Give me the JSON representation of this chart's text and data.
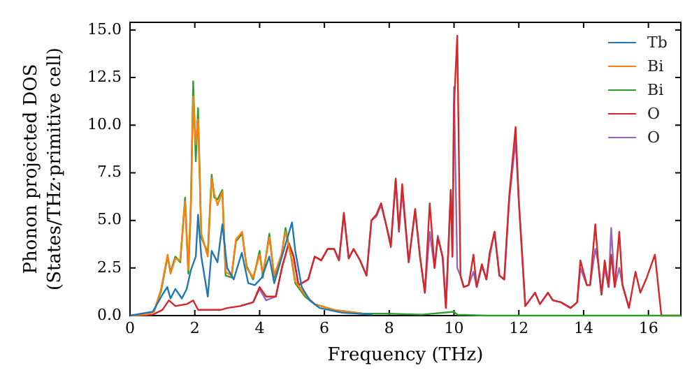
{
  "chart_data": {
    "type": "line",
    "xlabel": "Frequency (THz)",
    "ylabel": "Phonon projected DOS\n(States/THz·primitive cell)",
    "xlim": [
      0,
      17
    ],
    "ylim": [
      0,
      15.4
    ],
    "xticks": [
      0,
      2,
      4,
      6,
      8,
      10,
      12,
      14,
      16
    ],
    "yticks": [
      {
        "value": 0,
        "label": "0.0"
      },
      {
        "value": 2.5,
        "label": "2.5"
      },
      {
        "value": 5,
        "label": "5.0"
      },
      {
        "value": 7.5,
        "label": "7.5"
      },
      {
        "value": 10,
        "label": "10.0"
      },
      {
        "value": 12.5,
        "label": "12.5"
      },
      {
        "value": 15,
        "label": "15.0"
      }
    ],
    "grid": false,
    "legend": "top right",
    "marker": "none",
    "line_style": "solid",
    "series": [
      {
        "name": "Tb",
        "color": "#1f77b4",
        "x": [
          0,
          0.7,
          1.0,
          1.15,
          1.25,
          1.4,
          1.6,
          1.75,
          1.88,
          2.03,
          2.1,
          2.2,
          2.4,
          2.52,
          2.7,
          2.85,
          3.0,
          3.2,
          3.45,
          3.65,
          3.85,
          4.07,
          4.3,
          4.45,
          4.74,
          5.0,
          5.1,
          5.3,
          5.55,
          5.85,
          6.55,
          7.5
        ],
        "values": [
          0,
          0.2,
          1.1,
          1.5,
          0.9,
          1.4,
          0.9,
          1.4,
          2.4,
          3.1,
          5.3,
          3.1,
          1.0,
          3.4,
          2.8,
          4.8,
          2.5,
          1.9,
          3.3,
          1.7,
          1.6,
          2.0,
          3.1,
          1.7,
          3.4,
          4.9,
          3.4,
          1.5,
          0.8,
          0.4,
          0.15,
          0.05
        ]
      },
      {
        "name": "Bi",
        "color": "#ff7f0e",
        "x": [
          0,
          0.5,
          0.74,
          0.96,
          1.16,
          1.25,
          1.4,
          1.55,
          1.7,
          1.8,
          1.88,
          1.95,
          2.03,
          2.1,
          2.2,
          2.4,
          2.52,
          2.6,
          2.7,
          2.85,
          2.95,
          3.13,
          3.27,
          3.46,
          3.6,
          3.8,
          4.0,
          4.1,
          4.3,
          4.45,
          4.67,
          4.8,
          5.0,
          5.1,
          5.4,
          5.7,
          6.3,
          7.2
        ],
        "values": [
          0,
          0.05,
          0.2,
          1.4,
          3.2,
          2.2,
          3.0,
          2.9,
          6.0,
          2.4,
          5.8,
          11.5,
          9.0,
          10.3,
          4.3,
          3.1,
          7.2,
          6.4,
          5.8,
          6.5,
          2.3,
          2.1,
          4.0,
          4.4,
          2.5,
          2.0,
          3.2,
          2.2,
          4.1,
          2.1,
          3.2,
          4.4,
          2.9,
          1.8,
          1.1,
          0.6,
          0.3,
          0.1
        ]
      },
      {
        "name": "Bi",
        "color": "#2ca02c",
        "x": [
          0.74,
          0.96,
          1.16,
          1.25,
          1.4,
          1.55,
          1.7,
          1.8,
          1.88,
          1.95,
          2.03,
          2.1,
          2.2,
          2.4,
          2.52,
          2.6,
          2.7,
          2.85,
          2.95,
          3.13,
          3.27,
          3.46,
          3.6,
          3.8,
          4.0,
          4.1,
          4.3,
          4.45,
          4.67,
          4.8,
          5.0,
          5.1,
          5.4,
          5.7,
          6.3,
          7.2,
          8.0,
          9.0,
          10.0,
          10.1,
          11,
          12,
          13,
          14,
          15,
          16,
          17
        ],
        "values": [
          0.2,
          1.3,
          3.1,
          2.3,
          3.1,
          2.8,
          6.2,
          2.2,
          6.0,
          12.3,
          8.1,
          10.9,
          4.1,
          3.3,
          7.4,
          6.2,
          6.1,
          6.6,
          2.1,
          2.0,
          3.9,
          4.3,
          2.6,
          1.9,
          3.4,
          2.0,
          4.3,
          2.0,
          3.1,
          4.6,
          2.8,
          1.7,
          1.0,
          0.6,
          0.3,
          0.1,
          0.1,
          0.05,
          0.2,
          0.05,
          0,
          0,
          0,
          0,
          0,
          0,
          0
        ]
      },
      {
        "name": "O",
        "color": "#d62728",
        "x": [
          0,
          0.7,
          1.0,
          1.2,
          1.4,
          1.75,
          1.95,
          2.1,
          2.8,
          3.0,
          3.4,
          3.8,
          4.0,
          4.2,
          4.5,
          4.7,
          4.9,
          5.05,
          5.2,
          5.5,
          5.7,
          5.9,
          6.1,
          6.3,
          6.45,
          6.6,
          6.75,
          6.9,
          7.1,
          7.3,
          7.45,
          7.6,
          7.75,
          7.9,
          8.05,
          8.2,
          8.3,
          8.4,
          8.6,
          8.8,
          8.95,
          9.1,
          9.25,
          9.4,
          9.5,
          9.65,
          9.75,
          9.9,
          9.95,
          10.0,
          10.1,
          10.2,
          10.3,
          10.45,
          10.6,
          10.7,
          10.86,
          11.0,
          11.1,
          11.25,
          11.4,
          11.55,
          11.7,
          11.9,
          12.0,
          12.2,
          12.5,
          12.65,
          12.9,
          13.05,
          13.3,
          13.6,
          13.8,
          13.9,
          14.1,
          14.2,
          14.36,
          14.45,
          14.55,
          14.65,
          14.77,
          14.85,
          14.96,
          15.1,
          15.2,
          15.4,
          15.6,
          15.75,
          15.95,
          16.2,
          16.4,
          17
        ],
        "values": [
          0,
          0.05,
          0.3,
          0.8,
          0.5,
          0.6,
          0.8,
          0.3,
          0.3,
          0.4,
          0.5,
          0.7,
          1.5,
          1.0,
          1.0,
          2.6,
          3.8,
          3.1,
          1.6,
          1.9,
          3.1,
          2.9,
          3.5,
          3.5,
          2.9,
          5.4,
          3.0,
          3.5,
          2.9,
          2.1,
          5.0,
          5.3,
          5.9,
          4.8,
          3.6,
          7.2,
          4.4,
          6.9,
          2.8,
          5.6,
          3.1,
          1.2,
          5.9,
          2.5,
          4.1,
          3.1,
          0.4,
          6.6,
          3.1,
          11.0,
          14.7,
          2.1,
          1.5,
          1.6,
          3.2,
          1.5,
          2.7,
          1.9,
          3.3,
          4.4,
          2.1,
          1.9,
          6.2,
          9.9,
          6.0,
          0.5,
          1.2,
          0.6,
          1.2,
          0.8,
          0.7,
          0.4,
          0.7,
          2.9,
          1.6,
          1.6,
          4.8,
          2.8,
          1.1,
          2.9,
          1.5,
          3.2,
          1.5,
          4.4,
          1.6,
          0.4,
          2.3,
          1.2,
          2.0,
          3.2,
          0,
          0
        ]
      },
      {
        "name": "O",
        "color": "#9467bd",
        "x": [
          3.4,
          3.8,
          4.0,
          4.2,
          4.5,
          4.7,
          4.9,
          5.05,
          5.2,
          5.5,
          5.7,
          5.9,
          6.1,
          6.3,
          6.45,
          6.6,
          6.75,
          6.9,
          7.1,
          7.3,
          7.45,
          7.6,
          7.75,
          7.9,
          8.05,
          8.2,
          8.3,
          8.4,
          8.6,
          8.8,
          8.95,
          9.1,
          9.25,
          9.4,
          9.5,
          9.65,
          9.75,
          9.9,
          9.95,
          10.0,
          10.1,
          10.2,
          10.3,
          10.45,
          10.6,
          10.7,
          10.86,
          11.0,
          11.1,
          11.25,
          11.4,
          11.55,
          11.7,
          11.9,
          12.0,
          12.2,
          12.5,
          12.65,
          12.9,
          13.05,
          13.3,
          13.6,
          13.8,
          13.9,
          14.1,
          14.2,
          14.36,
          14.45,
          14.55,
          14.65,
          14.77,
          14.85,
          14.96,
          15.1,
          15.2,
          15.4
        ],
        "values": [
          0.5,
          0.7,
          1.4,
          0.8,
          1.0,
          2.6,
          3.8,
          3.1,
          1.6,
          1.9,
          3.1,
          2.9,
          3.5,
          3.5,
          2.9,
          5.3,
          3.0,
          3.5,
          2.9,
          2.1,
          5.0,
          5.2,
          5.8,
          4.8,
          3.8,
          7.1,
          4.6,
          6.5,
          2.8,
          5.5,
          3.1,
          1.2,
          4.4,
          2.5,
          4.2,
          3.0,
          0.4,
          6.6,
          3.1,
          12.0,
          2.5,
          2.1,
          1.5,
          1.6,
          2.3,
          1.5,
          2.6,
          1.9,
          3.1,
          4.4,
          2.1,
          1.9,
          6.0,
          9.2,
          6.0,
          0.5,
          1.2,
          0.6,
          1.2,
          0.8,
          0.7,
          0.4,
          0.7,
          2.5,
          1.6,
          1.6,
          3.5,
          2.8,
          1.1,
          2.5,
          1.5,
          4.6,
          1.5,
          2.5,
          1.6,
          0.4
        ]
      }
    ]
  }
}
